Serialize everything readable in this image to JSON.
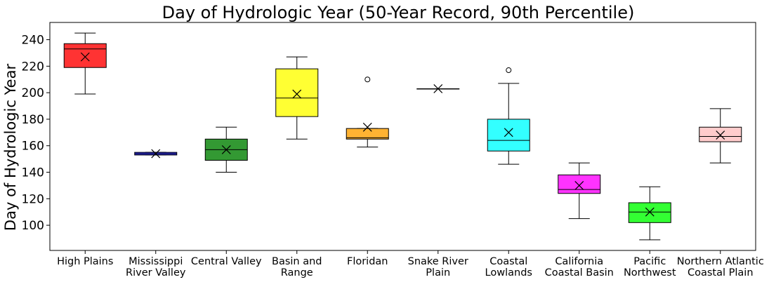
{
  "chart_data": {
    "type": "box",
    "title": "Day of Hydrologic Year (50-Year Record, 90th Percentile)",
    "xlabel": "",
    "ylabel": "Day of Hydrologic Year",
    "ylim": [
      81,
      253
    ],
    "yticks": [
      100,
      120,
      140,
      160,
      180,
      200,
      220,
      240
    ],
    "grid": false,
    "mean_marker": "x",
    "categories": [
      [
        "High Plains"
      ],
      [
        "Mississippi",
        "River Valley"
      ],
      [
        "Central Valley"
      ],
      [
        "Basin and",
        "Range"
      ],
      [
        "Floridan"
      ],
      [
        "Snake River",
        "Plain"
      ],
      [
        "Coastal",
        "Lowlands"
      ],
      [
        "California",
        "Coastal Basin"
      ],
      [
        "Pacific",
        "Northwest"
      ],
      [
        "Northern Atlantic",
        "Coastal Plain"
      ]
    ],
    "boxes": [
      {
        "whislo": 199,
        "q1": 219,
        "med": 233,
        "q3": 237,
        "whishi": 245,
        "mean": 227,
        "fliers": [],
        "color": "#ff3333"
      },
      {
        "whislo": 153,
        "q1": 153,
        "med": 154,
        "q3": 155,
        "whishi": 155,
        "mean": 154,
        "fliers": [],
        "color": "#3333ff"
      },
      {
        "whislo": 140,
        "q1": 149,
        "med": 157,
        "q3": 165,
        "whishi": 174,
        "mean": 157,
        "fliers": [],
        "color": "#339933"
      },
      {
        "whislo": 165,
        "q1": 182,
        "med": 196,
        "q3": 218,
        "whishi": 227,
        "mean": 199,
        "fliers": [],
        "color": "#ffff33"
      },
      {
        "whislo": 159,
        "q1": 165,
        "med": 166,
        "q3": 173,
        "whishi": 173,
        "mean": 174,
        "fliers": [
          210
        ],
        "color": "#ffb333"
      },
      {
        "whislo": 203,
        "q1": 203,
        "med": 203,
        "q3": 203,
        "whishi": 203,
        "mean": 203,
        "fliers": [],
        "color": "#99ccff"
      },
      {
        "whislo": 146,
        "q1": 156,
        "med": 164,
        "q3": 180,
        "whishi": 207,
        "mean": 170,
        "fliers": [
          217
        ],
        "color": "#33ffff"
      },
      {
        "whislo": 105,
        "q1": 124,
        "med": 127,
        "q3": 138,
        "whishi": 147,
        "mean": 130,
        "fliers": [],
        "color": "#ff33ff"
      },
      {
        "whislo": 89,
        "q1": 102,
        "med": 110,
        "q3": 117,
        "whishi": 129,
        "mean": 110,
        "fliers": [],
        "color": "#33ff33"
      },
      {
        "whislo": 147,
        "q1": 163,
        "med": 167,
        "q3": 174,
        "whishi": 188,
        "mean": 168,
        "fliers": [],
        "color": "#ffcccc"
      }
    ]
  }
}
